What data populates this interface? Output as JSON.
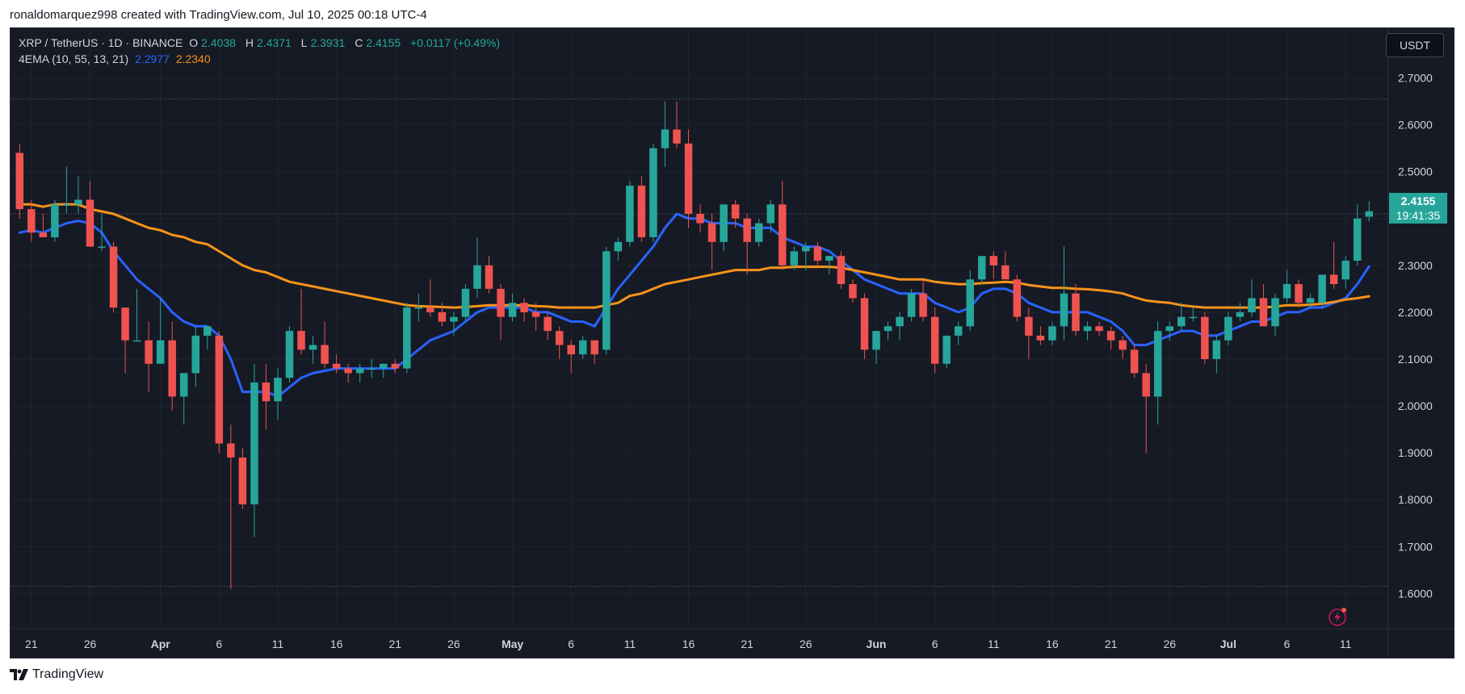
{
  "header": {
    "text": "ronaldomarquez998 created with TradingView.com, Jul 10, 2025 00:18 UTC-4"
  },
  "legend": {
    "symbol": "XRP / TetherUS · 1D · BINANCE",
    "open_label": "O",
    "open": "2.4038",
    "high_label": "H",
    "high": "2.4371",
    "low_label": "L",
    "low": "2.3931",
    "close_label": "C",
    "close": "2.4155",
    "change": "+0.0117 (+0.49%)",
    "indicator": "4EMA (10, 55, 13, 21)",
    "ema_fast": "2.2977",
    "ema_slow": "2.2340"
  },
  "toolbar": {
    "currency": "USDT"
  },
  "price_badge": {
    "price": "2.4155",
    "countdown": "19:41:35"
  },
  "footer": {
    "brand": "TradingView"
  },
  "colors": {
    "background": "#161a25",
    "up": "#26a69a",
    "down": "#ef5350",
    "ema_fast": "#2962ff",
    "ema_slow": "#f7931a",
    "grid": "#1f2430",
    "axis_text": "#d1d4dc"
  },
  "icons": {
    "alert": "lightning-alert-icon",
    "logo": "tradingview-logo-icon"
  },
  "chart_data": {
    "type": "candlestick",
    "title": "XRP / TetherUS · 1D · BINANCE",
    "y_axis_labels": [
      "2.7000",
      "2.6000",
      "2.5000",
      "2.4000",
      "2.3000",
      "2.2000",
      "2.1000",
      "2.0000",
      "1.9000",
      "1.8000",
      "1.7000",
      "1.6000"
    ],
    "ylim": [
      1.52,
      2.76
    ],
    "x_tick_labels": [
      "21",
      "26",
      "Apr",
      "6",
      "11",
      "16",
      "21",
      "26",
      "May",
      "6",
      "11",
      "16",
      "21",
      "26",
      "Jun",
      "6",
      "11",
      "16",
      "21",
      "26",
      "Jul",
      "6",
      "11"
    ],
    "x_tick_dates": [
      "2025-03-21",
      "2025-03-26",
      "2025-04-01",
      "2025-04-06",
      "2025-04-11",
      "2025-04-16",
      "2025-04-21",
      "2025-04-26",
      "2025-05-01",
      "2025-05-06",
      "2025-05-11",
      "2025-05-16",
      "2025-05-21",
      "2025-05-26",
      "2025-06-01",
      "2025-06-06",
      "2025-06-11",
      "2025-06-16",
      "2025-06-21",
      "2025-06-26",
      "2025-07-01",
      "2025-07-06",
      "2025-07-11"
    ],
    "x_range": [
      "2025-03-20",
      "2025-07-12"
    ],
    "first_candle_date": "2025-03-20",
    "grid": true,
    "reference_lines": [
      2.655,
      2.41,
      1.615
    ],
    "ohlc": [
      [
        2.54,
        2.56,
        2.4,
        2.42
      ],
      [
        2.42,
        2.44,
        2.35,
        2.37
      ],
      [
        2.37,
        2.41,
        2.36,
        2.36
      ],
      [
        2.36,
        2.44,
        2.35,
        2.43
      ],
      [
        2.43,
        2.51,
        2.41,
        2.43
      ],
      [
        2.43,
        2.49,
        2.41,
        2.44
      ],
      [
        2.44,
        2.48,
        2.34,
        2.34
      ],
      [
        2.34,
        2.41,
        2.33,
        2.34
      ],
      [
        2.34,
        2.35,
        2.2,
        2.21
      ],
      [
        2.21,
        2.21,
        2.07,
        2.14
      ],
      [
        2.14,
        2.25,
        2.14,
        2.14
      ],
      [
        2.14,
        2.18,
        2.03,
        2.09
      ],
      [
        2.09,
        2.23,
        2.09,
        2.14
      ],
      [
        2.14,
        2.18,
        1.99,
        2.02
      ],
      [
        2.02,
        2.06,
        1.96,
        2.07
      ],
      [
        2.07,
        2.17,
        2.04,
        2.15
      ],
      [
        2.15,
        2.17,
        2.12,
        2.17
      ],
      [
        2.15,
        2.16,
        1.9,
        1.92
      ],
      [
        1.92,
        1.96,
        1.61,
        1.89
      ],
      [
        1.89,
        1.91,
        1.78,
        1.79
      ],
      [
        1.79,
        2.09,
        1.72,
        2.05
      ],
      [
        2.05,
        2.09,
        1.95,
        2.01
      ],
      [
        2.01,
        2.08,
        1.97,
        2.06
      ],
      [
        2.06,
        2.17,
        2.05,
        2.16
      ],
      [
        2.16,
        2.25,
        2.11,
        2.12
      ],
      [
        2.12,
        2.15,
        2.09,
        2.13
      ],
      [
        2.13,
        2.18,
        2.08,
        2.09
      ],
      [
        2.09,
        2.11,
        2.07,
        2.08
      ],
      [
        2.08,
        2.09,
        2.05,
        2.07
      ],
      [
        2.07,
        2.09,
        2.05,
        2.08
      ],
      [
        2.08,
        2.1,
        2.06,
        2.08
      ],
      [
        2.08,
        2.09,
        2.06,
        2.09
      ],
      [
        2.09,
        2.1,
        2.07,
        2.08
      ],
      [
        2.08,
        2.22,
        2.07,
        2.21
      ],
      [
        2.21,
        2.24,
        2.18,
        2.21
      ],
      [
        2.21,
        2.27,
        2.19,
        2.2
      ],
      [
        2.2,
        2.22,
        2.17,
        2.18
      ],
      [
        2.18,
        2.2,
        2.15,
        2.19
      ],
      [
        2.19,
        2.26,
        2.18,
        2.25
      ],
      [
        2.25,
        2.36,
        2.23,
        2.3
      ],
      [
        2.3,
        2.32,
        2.24,
        2.25
      ],
      [
        2.25,
        2.26,
        2.14,
        2.19
      ],
      [
        2.19,
        2.24,
        2.18,
        2.22
      ],
      [
        2.22,
        2.23,
        2.18,
        2.2
      ],
      [
        2.2,
        2.22,
        2.16,
        2.19
      ],
      [
        2.19,
        2.2,
        2.14,
        2.16
      ],
      [
        2.16,
        2.17,
        2.1,
        2.13
      ],
      [
        2.13,
        2.14,
        2.07,
        2.11
      ],
      [
        2.11,
        2.15,
        2.1,
        2.14
      ],
      [
        2.14,
        2.14,
        2.09,
        2.11
      ],
      [
        2.12,
        2.34,
        2.11,
        2.33
      ],
      [
        2.33,
        2.36,
        2.31,
        2.35
      ],
      [
        2.35,
        2.48,
        2.34,
        2.47
      ],
      [
        2.47,
        2.49,
        2.35,
        2.36
      ],
      [
        2.36,
        2.56,
        2.35,
        2.55
      ],
      [
        2.55,
        2.65,
        2.51,
        2.59
      ],
      [
        2.59,
        2.65,
        2.55,
        2.56
      ],
      [
        2.56,
        2.59,
        2.38,
        2.41
      ],
      [
        2.41,
        2.43,
        2.37,
        2.39
      ],
      [
        2.39,
        2.41,
        2.29,
        2.35
      ],
      [
        2.35,
        2.43,
        2.33,
        2.43
      ],
      [
        2.43,
        2.44,
        2.38,
        2.4
      ],
      [
        2.4,
        2.41,
        2.28,
        2.35
      ],
      [
        2.35,
        2.4,
        2.34,
        2.39
      ],
      [
        2.39,
        2.44,
        2.37,
        2.43
      ],
      [
        2.43,
        2.48,
        2.29,
        2.3
      ],
      [
        2.3,
        2.34,
        2.29,
        2.33
      ],
      [
        2.33,
        2.35,
        2.29,
        2.34
      ],
      [
        2.34,
        2.35,
        2.3,
        2.31
      ],
      [
        2.31,
        2.32,
        2.28,
        2.32
      ],
      [
        2.32,
        2.33,
        2.25,
        2.26
      ],
      [
        2.26,
        2.27,
        2.22,
        2.23
      ],
      [
        2.23,
        2.24,
        2.1,
        2.12
      ],
      [
        2.12,
        2.16,
        2.09,
        2.16
      ],
      [
        2.16,
        2.18,
        2.14,
        2.17
      ],
      [
        2.17,
        2.2,
        2.14,
        2.19
      ],
      [
        2.19,
        2.25,
        2.18,
        2.24
      ],
      [
        2.24,
        2.27,
        2.18,
        2.19
      ],
      [
        2.19,
        2.21,
        2.07,
        2.09
      ],
      [
        2.09,
        2.15,
        2.08,
        2.15
      ],
      [
        2.15,
        2.18,
        2.13,
        2.17
      ],
      [
        2.17,
        2.29,
        2.16,
        2.27
      ],
      [
        2.27,
        2.32,
        2.26,
        2.32
      ],
      [
        2.32,
        2.33,
        2.27,
        2.3
      ],
      [
        2.3,
        2.33,
        2.27,
        2.27
      ],
      [
        2.27,
        2.28,
        2.18,
        2.19
      ],
      [
        2.19,
        2.21,
        2.1,
        2.15
      ],
      [
        2.15,
        2.17,
        2.13,
        2.14
      ],
      [
        2.14,
        2.18,
        2.13,
        2.17
      ],
      [
        2.17,
        2.34,
        2.14,
        2.24
      ],
      [
        2.24,
        2.26,
        2.15,
        2.16
      ],
      [
        2.16,
        2.18,
        2.14,
        2.17
      ],
      [
        2.17,
        2.18,
        2.15,
        2.16
      ],
      [
        2.16,
        2.17,
        2.12,
        2.14
      ],
      [
        2.14,
        2.15,
        2.1,
        2.12
      ],
      [
        2.12,
        2.13,
        2.06,
        2.07
      ],
      [
        2.07,
        2.09,
        1.9,
        2.02
      ],
      [
        2.02,
        2.18,
        1.96,
        2.16
      ],
      [
        2.16,
        2.18,
        2.14,
        2.17
      ],
      [
        2.17,
        2.22,
        2.16,
        2.19
      ],
      [
        2.19,
        2.21,
        2.18,
        2.19
      ],
      [
        2.19,
        2.2,
        2.09,
        2.1
      ],
      [
        2.1,
        2.15,
        2.07,
        2.14
      ],
      [
        2.14,
        2.2,
        2.13,
        2.19
      ],
      [
        2.19,
        2.22,
        2.18,
        2.2
      ],
      [
        2.2,
        2.27,
        2.19,
        2.23
      ],
      [
        2.23,
        2.26,
        2.17,
        2.17
      ],
      [
        2.17,
        2.24,
        2.15,
        2.23
      ],
      [
        2.23,
        2.29,
        2.22,
        2.26
      ],
      [
        2.26,
        2.27,
        2.21,
        2.22
      ],
      [
        2.22,
        2.24,
        2.21,
        2.23
      ],
      [
        2.22,
        2.28,
        2.21,
        2.28
      ],
      [
        2.28,
        2.35,
        2.25,
        2.26
      ],
      [
        2.27,
        2.32,
        2.25,
        2.31
      ],
      [
        2.31,
        2.43,
        2.3,
        2.4
      ],
      [
        2.4038,
        2.4371,
        2.3931,
        2.4155
      ]
    ],
    "series": [
      {
        "name": "EMA",
        "color": "#2962ff",
        "values": [
          2.37,
          2.375,
          2.37,
          2.38,
          2.39,
          2.395,
          2.39,
          2.37,
          2.33,
          2.3,
          2.27,
          2.25,
          2.23,
          2.2,
          2.18,
          2.17,
          2.17,
          2.15,
          2.1,
          2.03,
          2.03,
          2.03,
          2.02,
          2.04,
          2.06,
          2.07,
          2.075,
          2.08,
          2.08,
          2.08,
          2.08,
          2.08,
          2.08,
          2.1,
          2.12,
          2.14,
          2.15,
          2.16,
          2.18,
          2.2,
          2.21,
          2.21,
          2.21,
          2.21,
          2.2,
          2.2,
          2.19,
          2.18,
          2.18,
          2.17,
          2.21,
          2.25,
          2.28,
          2.31,
          2.34,
          2.38,
          2.41,
          2.4,
          2.4,
          2.39,
          2.39,
          2.39,
          2.38,
          2.38,
          2.38,
          2.36,
          2.35,
          2.34,
          2.34,
          2.33,
          2.31,
          2.29,
          2.27,
          2.26,
          2.25,
          2.24,
          2.24,
          2.24,
          2.22,
          2.21,
          2.2,
          2.21,
          2.24,
          2.25,
          2.25,
          2.24,
          2.22,
          2.21,
          2.2,
          2.2,
          2.2,
          2.2,
          2.19,
          2.18,
          2.16,
          2.13,
          2.13,
          2.14,
          2.15,
          2.16,
          2.16,
          2.15,
          2.15,
          2.16,
          2.17,
          2.18,
          2.18,
          2.19,
          2.2,
          2.2,
          2.21,
          2.21,
          2.22,
          2.23,
          2.26,
          2.2977
        ]
      },
      {
        "name": "EMA",
        "color": "#f7931a",
        "values": [
          2.43,
          2.43,
          2.425,
          2.43,
          2.43,
          2.43,
          2.42,
          2.415,
          2.41,
          2.4,
          2.39,
          2.38,
          2.375,
          2.365,
          2.36,
          2.35,
          2.345,
          2.33,
          2.315,
          2.3,
          2.29,
          2.285,
          2.275,
          2.265,
          2.26,
          2.255,
          2.25,
          2.245,
          2.24,
          2.235,
          2.23,
          2.225,
          2.22,
          2.215,
          2.213,
          2.212,
          2.211,
          2.21,
          2.211,
          2.213,
          2.215,
          2.215,
          2.215,
          2.215,
          2.213,
          2.212,
          2.21,
          2.21,
          2.21,
          2.21,
          2.215,
          2.22,
          2.235,
          2.24,
          2.25,
          2.26,
          2.265,
          2.27,
          2.275,
          2.28,
          2.285,
          2.29,
          2.29,
          2.29,
          2.295,
          2.295,
          2.297,
          2.297,
          2.297,
          2.297,
          2.295,
          2.29,
          2.285,
          2.28,
          2.275,
          2.27,
          2.27,
          2.27,
          2.265,
          2.262,
          2.26,
          2.26,
          2.262,
          2.263,
          2.265,
          2.263,
          2.258,
          2.255,
          2.252,
          2.252,
          2.25,
          2.249,
          2.247,
          2.244,
          2.24,
          2.232,
          2.225,
          2.222,
          2.22,
          2.215,
          2.212,
          2.21,
          2.21,
          2.21,
          2.21,
          2.21,
          2.21,
          2.212,
          2.215,
          2.215,
          2.216,
          2.218,
          2.222,
          2.227,
          2.23,
          2.234
        ]
      }
    ]
  }
}
